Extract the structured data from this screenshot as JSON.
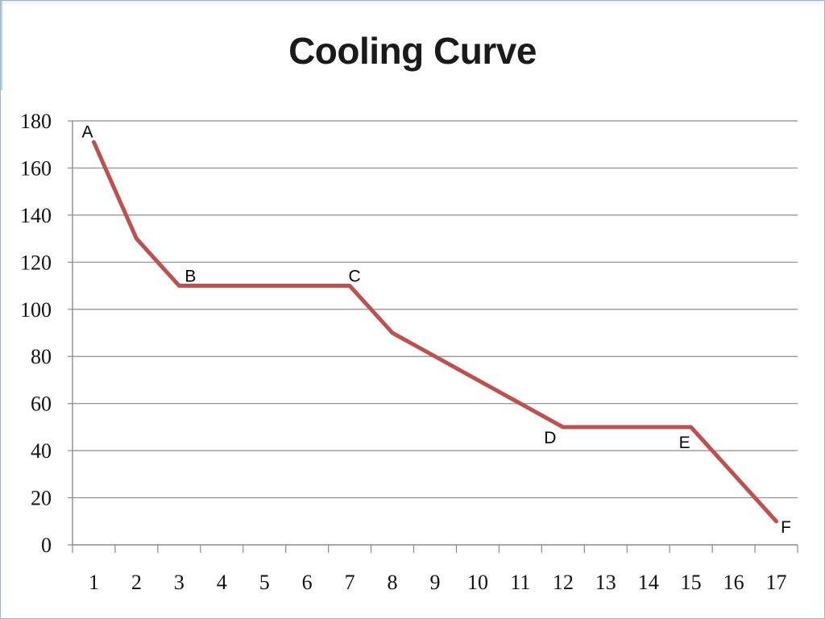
{
  "chart_data": {
    "type": "line",
    "title": "Cooling Curve",
    "xlabel": "",
    "ylabel": "",
    "x": [
      1,
      2,
      3,
      4,
      5,
      6,
      7,
      8,
      9,
      10,
      11,
      12,
      13,
      14,
      15,
      16,
      17
    ],
    "xlim": [
      0,
      17
    ],
    "ylim": [
      0,
      180
    ],
    "y_ticks": [
      0,
      20,
      40,
      60,
      80,
      100,
      120,
      140,
      160,
      180
    ],
    "grid": true,
    "series": [
      {
        "color": "#c0504d",
        "points": [
          {
            "x": 0.5,
            "y": 171
          },
          {
            "x": 1.5,
            "y": 130
          },
          {
            "x": 2.5,
            "y": 110
          },
          {
            "x": 6.5,
            "y": 110
          },
          {
            "x": 7.5,
            "y": 90
          },
          {
            "x": 11.5,
            "y": 50
          },
          {
            "x": 14.5,
            "y": 50
          },
          {
            "x": 16.5,
            "y": 10
          }
        ]
      }
    ],
    "annotations": [
      {
        "text": "A",
        "x": 0.5,
        "y": 171
      },
      {
        "text": "B",
        "x": 2.5,
        "y": 110
      },
      {
        "text": "C",
        "x": 6.5,
        "y": 110
      },
      {
        "text": "D",
        "x": 11.5,
        "y": 50
      },
      {
        "text": "E",
        "x": 14.5,
        "y": 50
      },
      {
        "text": "F",
        "x": 16.5,
        "y": 10
      }
    ]
  }
}
